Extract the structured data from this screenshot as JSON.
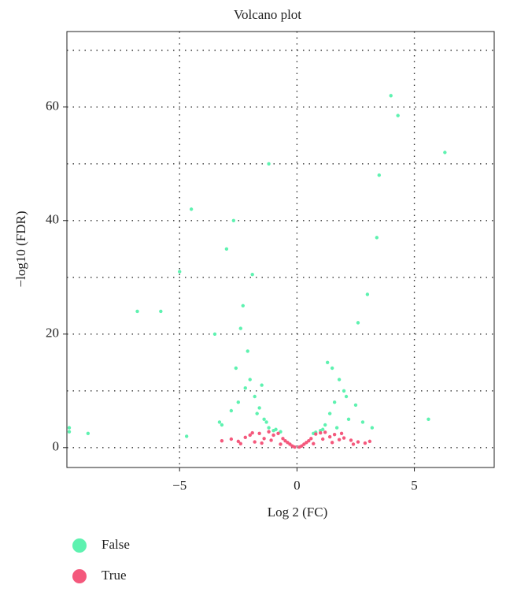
{
  "chart_data": {
    "type": "scatter",
    "title": "Volcano plot",
    "x_label": "Log 2 (FC)",
    "y_label": "−log10 (FDR)",
    "xlim": [
      -9.8,
      8.4
    ],
    "ylim": [
      -3.5,
      73.3
    ],
    "xticks": [
      {
        "value": -5,
        "label": "−5"
      },
      0,
      5
    ],
    "yticks": [
      0,
      20,
      40,
      60
    ],
    "minor_yticks": [
      10,
      30,
      50,
      70
    ],
    "grid": true,
    "series": [
      {
        "name": "False",
        "color": "#5ef2b0",
        "x": [
          -9.7,
          -9.7,
          -8.9,
          -3.2,
          -2.8,
          -2.5,
          -2.2,
          -2.0,
          -1.8,
          -1.6,
          -1.4,
          -1.2,
          -1.0,
          -2.6,
          -2.1,
          -1.7,
          -1.3,
          -3.5,
          -2.3,
          -1.9,
          -0.9,
          -0.7,
          1.0,
          1.2,
          1.4,
          1.6,
          1.8,
          2.0,
          2.2,
          2.5,
          2.8,
          3.2,
          1.3,
          1.7,
          2.1,
          3.0,
          1.1,
          0.8,
          0.7,
          -4.5,
          -5.8,
          -6.8,
          -1.2,
          -3.0,
          -2.4,
          -2.7,
          -3.3,
          3.4,
          4.3,
          6.3,
          4.0,
          3.5,
          2.6,
          -1.5,
          1.5,
          -5.0,
          5.6,
          -4.7
        ],
        "values": [
          3.5,
          2.8,
          2.5,
          4.0,
          6.5,
          8.0,
          10.5,
          12.0,
          9.0,
          7.0,
          5.0,
          3.5,
          3.0,
          14.0,
          17.0,
          6.0,
          4.5,
          20.0,
          25.0,
          30.5,
          3.2,
          2.8,
          3.0,
          4.0,
          6.0,
          8.0,
          12.0,
          10.0,
          5.0,
          7.5,
          4.5,
          3.5,
          15.0,
          3.5,
          9.0,
          27.0,
          3.2,
          2.7,
          2.5,
          42.0,
          24.0,
          24.0,
          50.0,
          35.0,
          21.0,
          40.0,
          4.5,
          37.0,
          58.5,
          52.0,
          62.0,
          48.0,
          22.0,
          11.0,
          14.0,
          31.0,
          5.0,
          2.0
        ]
      },
      {
        "name": "True",
        "color": "#f4587c",
        "x": [
          -3.2,
          -2.8,
          -2.5,
          -2.2,
          -2.0,
          -1.8,
          -1.6,
          -1.4,
          -1.2,
          -1.0,
          -0.8,
          -0.6,
          -0.5,
          -0.4,
          -0.3,
          -0.2,
          -0.1,
          0.1,
          0.2,
          0.3,
          0.4,
          0.5,
          0.6,
          0.8,
          1.0,
          1.2,
          1.4,
          1.6,
          1.8,
          2.0,
          2.3,
          2.6,
          2.9,
          3.1,
          -1.5,
          -1.1,
          -0.7,
          0.7,
          1.1,
          1.5,
          -2.4,
          2.4,
          -1.9,
          1.9
        ],
        "values": [
          1.2,
          1.5,
          1.1,
          1.8,
          2.2,
          1.0,
          2.5,
          1.6,
          2.8,
          2.2,
          2.5,
          1.6,
          1.2,
          0.9,
          0.6,
          0.3,
          0.1,
          0.1,
          0.3,
          0.6,
          0.9,
          1.2,
          1.6,
          2.4,
          2.6,
          2.7,
          1.9,
          2.3,
          1.4,
          1.7,
          1.3,
          1.0,
          0.8,
          1.1,
          0.8,
          1.3,
          0.6,
          0.7,
          1.5,
          0.9,
          0.7,
          0.6,
          2.6,
          2.5
        ]
      }
    ]
  }
}
